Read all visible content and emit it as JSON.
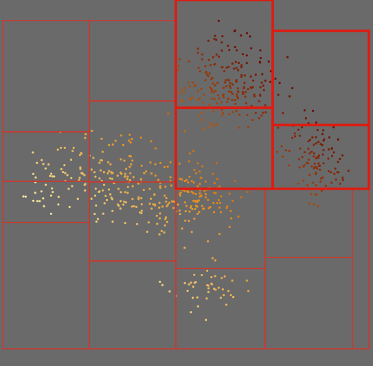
{
  "colors": {
    "background": "#6a6a6a",
    "cell_border": "#c83a30",
    "highlight_border": "#e01a10",
    "point_light": "#f4f0b0",
    "point_mid": "#e08a1e",
    "point_dark": "#6e1208"
  },
  "cells": [
    {
      "id": "cell-a",
      "highlight": false
    },
    {
      "id": "cell-b",
      "highlight": false
    },
    {
      "id": "cell-c",
      "highlight": true
    },
    {
      "id": "cell-d",
      "highlight": true
    },
    {
      "id": "cell-e",
      "highlight": false
    },
    {
      "id": "cell-f",
      "highlight": false
    },
    {
      "id": "cell-g",
      "highlight": true
    },
    {
      "id": "cell-h",
      "highlight": true
    },
    {
      "id": "cell-i",
      "highlight": false
    },
    {
      "id": "cell-j",
      "highlight": false
    },
    {
      "id": "cell-k",
      "highlight": false
    },
    {
      "id": "cell-l",
      "highlight": false
    },
    {
      "id": "cell-m",
      "highlight": false
    },
    {
      "id": "cell-n",
      "highlight": false
    },
    {
      "id": "cell-o",
      "highlight": false
    },
    {
      "id": "cell-p",
      "highlight": false
    },
    {
      "id": "cell-q",
      "highlight": false
    }
  ]
}
